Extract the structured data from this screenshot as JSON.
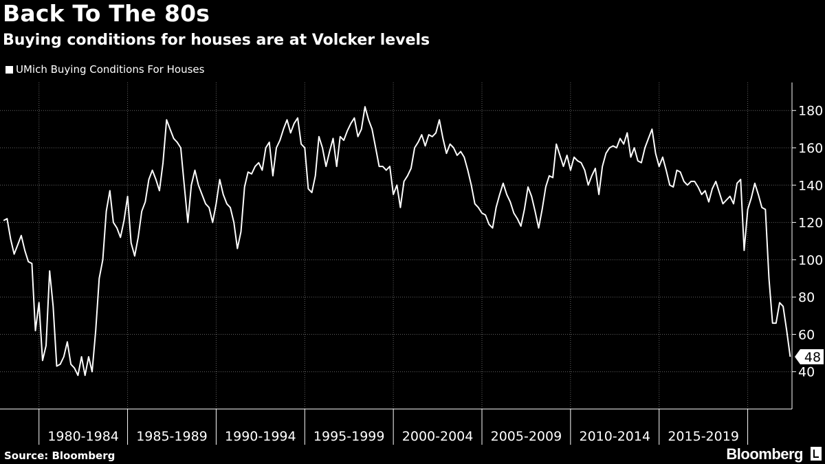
{
  "title": "Back To The 80s",
  "subtitle": "Buying conditions for houses are at Volcker levels",
  "source": "Source: Bloomberg",
  "brand": "Bloomberg",
  "colors": {
    "background": "#000000",
    "line": "#ffffff",
    "grid": "#666666"
  },
  "chart_data": {
    "type": "line",
    "title": "Back To The 80s",
    "subtitle": "Buying conditions for houses are at Volcker levels",
    "legend": "top-left",
    "grid": true,
    "xlim": [
      1977.8,
      2022.5
    ],
    "ylim": [
      20,
      195
    ],
    "y_ticks": [
      40,
      60,
      80,
      100,
      120,
      140,
      160,
      180
    ],
    "x_tick_labels": [
      "1980-1984",
      "1985-1989",
      "1990-1994",
      "1995-1999",
      "2000-2004",
      "2005-2009",
      "2010-2014",
      "2015-2019"
    ],
    "last_value_label": "48",
    "series": [
      {
        "name": "UMich Buying Conditions For Houses",
        "x": [
          1978.0,
          1978.2,
          1978.4,
          1978.6,
          1978.8,
          1979.0,
          1979.2,
          1979.4,
          1979.6,
          1979.8,
          1980.0,
          1980.2,
          1980.4,
          1980.6,
          1980.8,
          1981.0,
          1981.2,
          1981.4,
          1981.6,
          1981.8,
          1982.0,
          1982.2,
          1982.4,
          1982.6,
          1982.8,
          1983.0,
          1983.2,
          1983.4,
          1983.6,
          1983.8,
          1984.0,
          1984.2,
          1984.4,
          1984.6,
          1984.8,
          1985.0,
          1985.2,
          1985.4,
          1985.6,
          1985.8,
          1986.0,
          1986.2,
          1986.4,
          1986.6,
          1986.8,
          1987.0,
          1987.2,
          1987.4,
          1987.6,
          1987.8,
          1988.0,
          1988.2,
          1988.4,
          1988.6,
          1988.8,
          1989.0,
          1989.2,
          1989.4,
          1989.6,
          1989.8,
          1990.0,
          1990.2,
          1990.4,
          1990.6,
          1990.8,
          1991.0,
          1991.2,
          1991.4,
          1991.6,
          1991.8,
          1992.0,
          1992.2,
          1992.4,
          1992.6,
          1992.8,
          1993.0,
          1993.2,
          1993.4,
          1993.6,
          1993.8,
          1994.0,
          1994.2,
          1994.4,
          1994.6,
          1994.8,
          1995.0,
          1995.2,
          1995.4,
          1995.6,
          1995.8,
          1996.0,
          1996.2,
          1996.4,
          1996.6,
          1996.8,
          1997.0,
          1997.2,
          1997.4,
          1997.6,
          1997.8,
          1998.0,
          1998.2,
          1998.4,
          1998.6,
          1998.8,
          1999.0,
          1999.2,
          1999.4,
          1999.6,
          1999.8,
          2000.0,
          2000.2,
          2000.4,
          2000.6,
          2000.8,
          2001.0,
          2001.2,
          2001.4,
          2001.6,
          2001.8,
          2002.0,
          2002.2,
          2002.4,
          2002.6,
          2002.8,
          2003.0,
          2003.2,
          2003.4,
          2003.6,
          2003.8,
          2004.0,
          2004.2,
          2004.4,
          2004.6,
          2004.8,
          2005.0,
          2005.2,
          2005.4,
          2005.6,
          2005.8,
          2006.0,
          2006.2,
          2006.4,
          2006.6,
          2006.8,
          2007.0,
          2007.2,
          2007.4,
          2007.6,
          2007.8,
          2008.0,
          2008.2,
          2008.4,
          2008.6,
          2008.8,
          2009.0,
          2009.2,
          2009.4,
          2009.6,
          2009.8,
          2010.0,
          2010.2,
          2010.4,
          2010.6,
          2010.8,
          2011.0,
          2011.2,
          2011.4,
          2011.6,
          2011.8,
          2012.0,
          2012.2,
          2012.4,
          2012.6,
          2012.8,
          2013.0,
          2013.2,
          2013.4,
          2013.6,
          2013.8,
          2014.0,
          2014.2,
          2014.4,
          2014.6,
          2014.8,
          2015.0,
          2015.2,
          2015.4,
          2015.6,
          2015.8,
          2016.0,
          2016.2,
          2016.4,
          2016.6,
          2016.8,
          2017.0,
          2017.2,
          2017.4,
          2017.6,
          2017.8,
          2018.0,
          2018.2,
          2018.4,
          2018.6,
          2018.8,
          2019.0,
          2019.2,
          2019.4,
          2019.6,
          2019.8,
          2020.0,
          2020.2,
          2020.4,
          2020.6,
          2020.8,
          2021.0,
          2021.2,
          2021.4,
          2021.6,
          2021.8,
          2022.0,
          2022.2,
          2022.4
        ],
        "values": [
          121,
          122,
          111,
          103,
          108,
          113,
          105,
          99,
          98,
          62,
          77,
          46,
          54,
          94,
          75,
          43,
          44,
          48,
          56,
          44,
          42,
          38,
          48,
          38,
          48,
          40,
          62,
          90,
          100,
          126,
          137,
          120,
          117,
          112,
          121,
          134,
          109,
          102,
          112,
          126,
          131,
          143,
          148,
          143,
          137,
          152,
          175,
          170,
          165,
          163,
          160,
          140,
          120,
          140,
          148,
          140,
          135,
          130,
          128,
          120,
          130,
          143,
          135,
          130,
          128,
          120,
          106,
          115,
          139,
          147,
          146,
          150,
          152,
          148,
          160,
          163,
          145,
          160,
          164,
          170,
          175,
          168,
          173,
          176,
          162,
          160,
          138,
          136,
          145,
          166,
          160,
          150,
          158,
          165,
          150,
          166,
          164,
          169,
          173,
          176,
          166,
          170,
          182,
          175,
          170,
          160,
          150,
          150,
          148,
          150,
          135,
          140,
          128,
          142,
          145,
          149,
          160,
          163,
          167,
          161,
          167,
          166,
          168,
          175,
          165,
          157,
          162,
          160,
          156,
          158,
          155,
          148,
          140,
          130,
          128,
          125,
          124,
          119,
          117,
          128,
          135,
          141,
          135,
          131,
          125,
          122,
          118,
          127,
          139,
          134,
          126,
          117,
          127,
          139,
          145,
          144,
          162,
          156,
          150,
          156,
          148,
          155,
          153,
          152,
          148,
          140,
          145,
          149,
          135,
          150,
          157,
          160,
          161,
          160,
          165,
          162,
          168,
          155,
          160,
          153,
          152,
          160,
          165,
          170,
          157,
          150,
          155,
          148,
          140,
          139,
          148,
          147,
          142,
          140,
          142,
          142,
          139,
          135,
          137,
          131,
          138,
          142,
          136,
          130,
          132,
          134,
          130,
          141,
          143,
          105,
          127,
          133,
          141,
          135,
          128,
          127,
          90,
          66,
          66,
          77,
          75,
          62,
          48
        ]
      }
    ]
  }
}
